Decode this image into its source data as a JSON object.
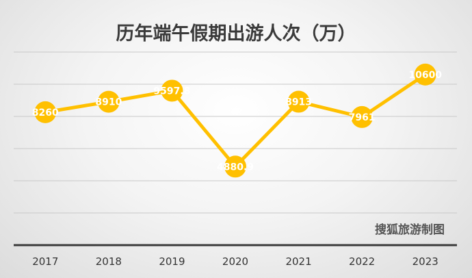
{
  "chart_data": {
    "type": "line",
    "title": "历年端午假期出游人次（万）",
    "categories": [
      "2017",
      "2018",
      "2019",
      "2020",
      "2021",
      "2022",
      "2023"
    ],
    "values": [
      8260,
      8910,
      9597.8,
      4880.9,
      8913,
      7961,
      10600
    ],
    "data_labels": [
      "8260",
      "8910",
      "9597.8",
      "4880.9",
      "8913",
      "7961",
      "10600"
    ],
    "ylim": [
      0,
      12000
    ],
    "grid": true,
    "legend": "none",
    "line_color": "#FFC000",
    "marker_color": "#FFC000",
    "label_color": "#FFFFFF",
    "annotation": "搜狐旅游制图"
  }
}
